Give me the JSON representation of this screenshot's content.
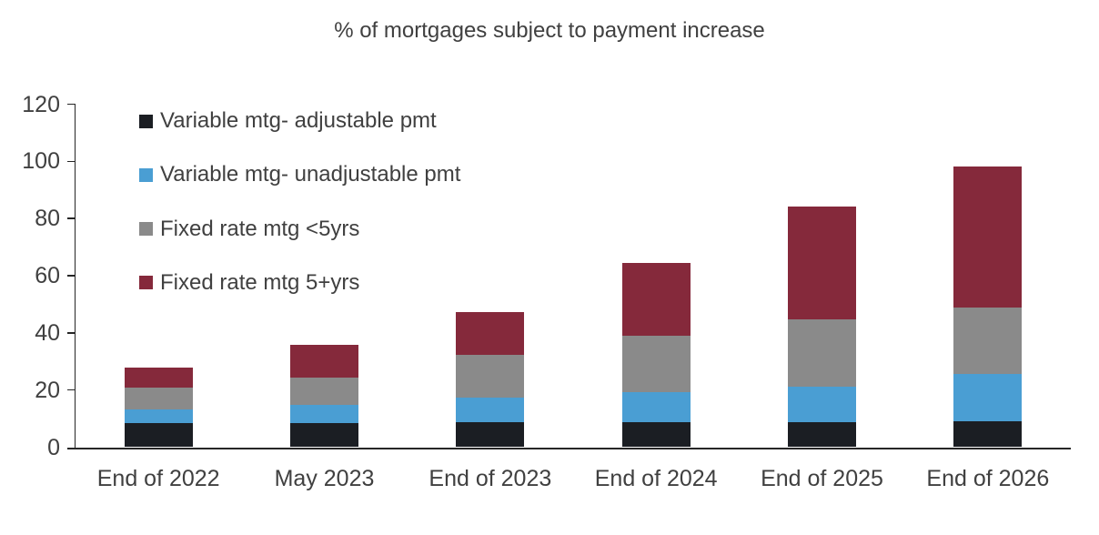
{
  "title": "% of mortgages subject to payment increase",
  "colors": {
    "background": "#ffffff",
    "text": "#404040",
    "axis": "#262626",
    "series_black": "#1b1e23",
    "series_blue": "#4a9ed3",
    "series_gray": "#8a8a8a",
    "series_red": "#85293b"
  },
  "chart_data": {
    "type": "bar",
    "stacked": true,
    "title": "% of mortgages subject to payment increase",
    "xlabel": "",
    "ylabel": "",
    "grid": false,
    "legend_position": "inside-top-left",
    "ylim": [
      0,
      120
    ],
    "yticks": [
      0,
      20,
      40,
      60,
      80,
      100,
      120
    ],
    "categories": [
      "End of 2022",
      "May 2023",
      "End of 2023",
      "End of 2024",
      "End of 2025",
      "End of 2026"
    ],
    "series": [
      {
        "name": "Variable mtg- adjustable pmt",
        "color": "#1b1e23",
        "values": [
          8.5,
          8.5,
          8.8,
          8.8,
          8.8,
          9.0
        ]
      },
      {
        "name": "Variable mtg- unadjustable pmt",
        "color": "#4a9ed3",
        "values": [
          4.6,
          6.4,
          8.5,
          10.6,
          12.5,
          16.5
        ]
      },
      {
        "name": "Fixed rate mtg <5yrs",
        "color": "#8a8a8a",
        "values": [
          7.7,
          9.5,
          15.1,
          19.7,
          23.4,
          23.3
        ]
      },
      {
        "name": "Fixed rate mtg 5+yrs",
        "color": "#85293b",
        "values": [
          7.1,
          11.3,
          14.8,
          25.4,
          39.6,
          49.4
        ]
      }
    ],
    "totals": [
      27.9,
      35.7,
      47.2,
      64.5,
      84.3,
      98.2
    ]
  }
}
